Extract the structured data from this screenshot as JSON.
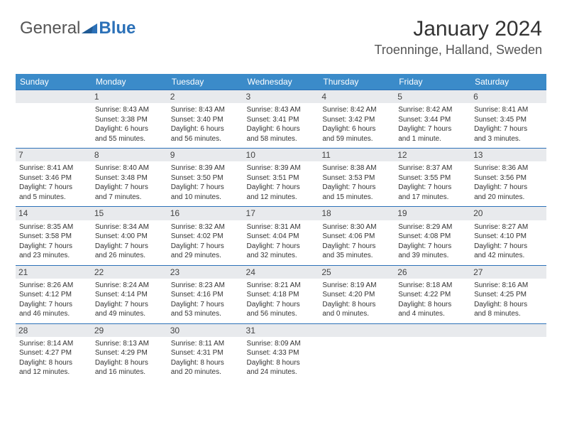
{
  "logo": {
    "text_general": "General",
    "text_blue": "Blue",
    "triangle_color": "#2c71b8"
  },
  "header": {
    "month_title": "January 2024",
    "location": "Troenninge, Halland, Sweden"
  },
  "colors": {
    "header_bg": "#3b8bc9",
    "row_border": "#2c71b8",
    "daynum_bg": "#e8eaed",
    "text": "#333333",
    "text_light": "#555555"
  },
  "day_names": [
    "Sunday",
    "Monday",
    "Tuesday",
    "Wednesday",
    "Thursday",
    "Friday",
    "Saturday"
  ],
  "weeks": [
    [
      null,
      {
        "n": "1",
        "sr": "Sunrise: 8:43 AM",
        "ss": "Sunset: 3:38 PM",
        "d1": "Daylight: 6 hours",
        "d2": "and 55 minutes."
      },
      {
        "n": "2",
        "sr": "Sunrise: 8:43 AM",
        "ss": "Sunset: 3:40 PM",
        "d1": "Daylight: 6 hours",
        "d2": "and 56 minutes."
      },
      {
        "n": "3",
        "sr": "Sunrise: 8:43 AM",
        "ss": "Sunset: 3:41 PM",
        "d1": "Daylight: 6 hours",
        "d2": "and 58 minutes."
      },
      {
        "n": "4",
        "sr": "Sunrise: 8:42 AM",
        "ss": "Sunset: 3:42 PM",
        "d1": "Daylight: 6 hours",
        "d2": "and 59 minutes."
      },
      {
        "n": "5",
        "sr": "Sunrise: 8:42 AM",
        "ss": "Sunset: 3:44 PM",
        "d1": "Daylight: 7 hours",
        "d2": "and 1 minute."
      },
      {
        "n": "6",
        "sr": "Sunrise: 8:41 AM",
        "ss": "Sunset: 3:45 PM",
        "d1": "Daylight: 7 hours",
        "d2": "and 3 minutes."
      }
    ],
    [
      {
        "n": "7",
        "sr": "Sunrise: 8:41 AM",
        "ss": "Sunset: 3:46 PM",
        "d1": "Daylight: 7 hours",
        "d2": "and 5 minutes."
      },
      {
        "n": "8",
        "sr": "Sunrise: 8:40 AM",
        "ss": "Sunset: 3:48 PM",
        "d1": "Daylight: 7 hours",
        "d2": "and 7 minutes."
      },
      {
        "n": "9",
        "sr": "Sunrise: 8:39 AM",
        "ss": "Sunset: 3:50 PM",
        "d1": "Daylight: 7 hours",
        "d2": "and 10 minutes."
      },
      {
        "n": "10",
        "sr": "Sunrise: 8:39 AM",
        "ss": "Sunset: 3:51 PM",
        "d1": "Daylight: 7 hours",
        "d2": "and 12 minutes."
      },
      {
        "n": "11",
        "sr": "Sunrise: 8:38 AM",
        "ss": "Sunset: 3:53 PM",
        "d1": "Daylight: 7 hours",
        "d2": "and 15 minutes."
      },
      {
        "n": "12",
        "sr": "Sunrise: 8:37 AM",
        "ss": "Sunset: 3:55 PM",
        "d1": "Daylight: 7 hours",
        "d2": "and 17 minutes."
      },
      {
        "n": "13",
        "sr": "Sunrise: 8:36 AM",
        "ss": "Sunset: 3:56 PM",
        "d1": "Daylight: 7 hours",
        "d2": "and 20 minutes."
      }
    ],
    [
      {
        "n": "14",
        "sr": "Sunrise: 8:35 AM",
        "ss": "Sunset: 3:58 PM",
        "d1": "Daylight: 7 hours",
        "d2": "and 23 minutes."
      },
      {
        "n": "15",
        "sr": "Sunrise: 8:34 AM",
        "ss": "Sunset: 4:00 PM",
        "d1": "Daylight: 7 hours",
        "d2": "and 26 minutes."
      },
      {
        "n": "16",
        "sr": "Sunrise: 8:32 AM",
        "ss": "Sunset: 4:02 PM",
        "d1": "Daylight: 7 hours",
        "d2": "and 29 minutes."
      },
      {
        "n": "17",
        "sr": "Sunrise: 8:31 AM",
        "ss": "Sunset: 4:04 PM",
        "d1": "Daylight: 7 hours",
        "d2": "and 32 minutes."
      },
      {
        "n": "18",
        "sr": "Sunrise: 8:30 AM",
        "ss": "Sunset: 4:06 PM",
        "d1": "Daylight: 7 hours",
        "d2": "and 35 minutes."
      },
      {
        "n": "19",
        "sr": "Sunrise: 8:29 AM",
        "ss": "Sunset: 4:08 PM",
        "d1": "Daylight: 7 hours",
        "d2": "and 39 minutes."
      },
      {
        "n": "20",
        "sr": "Sunrise: 8:27 AM",
        "ss": "Sunset: 4:10 PM",
        "d1": "Daylight: 7 hours",
        "d2": "and 42 minutes."
      }
    ],
    [
      {
        "n": "21",
        "sr": "Sunrise: 8:26 AM",
        "ss": "Sunset: 4:12 PM",
        "d1": "Daylight: 7 hours",
        "d2": "and 46 minutes."
      },
      {
        "n": "22",
        "sr": "Sunrise: 8:24 AM",
        "ss": "Sunset: 4:14 PM",
        "d1": "Daylight: 7 hours",
        "d2": "and 49 minutes."
      },
      {
        "n": "23",
        "sr": "Sunrise: 8:23 AM",
        "ss": "Sunset: 4:16 PM",
        "d1": "Daylight: 7 hours",
        "d2": "and 53 minutes."
      },
      {
        "n": "24",
        "sr": "Sunrise: 8:21 AM",
        "ss": "Sunset: 4:18 PM",
        "d1": "Daylight: 7 hours",
        "d2": "and 56 minutes."
      },
      {
        "n": "25",
        "sr": "Sunrise: 8:19 AM",
        "ss": "Sunset: 4:20 PM",
        "d1": "Daylight: 8 hours",
        "d2": "and 0 minutes."
      },
      {
        "n": "26",
        "sr": "Sunrise: 8:18 AM",
        "ss": "Sunset: 4:22 PM",
        "d1": "Daylight: 8 hours",
        "d2": "and 4 minutes."
      },
      {
        "n": "27",
        "sr": "Sunrise: 8:16 AM",
        "ss": "Sunset: 4:25 PM",
        "d1": "Daylight: 8 hours",
        "d2": "and 8 minutes."
      }
    ],
    [
      {
        "n": "28",
        "sr": "Sunrise: 8:14 AM",
        "ss": "Sunset: 4:27 PM",
        "d1": "Daylight: 8 hours",
        "d2": "and 12 minutes."
      },
      {
        "n": "29",
        "sr": "Sunrise: 8:13 AM",
        "ss": "Sunset: 4:29 PM",
        "d1": "Daylight: 8 hours",
        "d2": "and 16 minutes."
      },
      {
        "n": "30",
        "sr": "Sunrise: 8:11 AM",
        "ss": "Sunset: 4:31 PM",
        "d1": "Daylight: 8 hours",
        "d2": "and 20 minutes."
      },
      {
        "n": "31",
        "sr": "Sunrise: 8:09 AM",
        "ss": "Sunset: 4:33 PM",
        "d1": "Daylight: 8 hours",
        "d2": "and 24 minutes."
      },
      null,
      null,
      null
    ]
  ]
}
